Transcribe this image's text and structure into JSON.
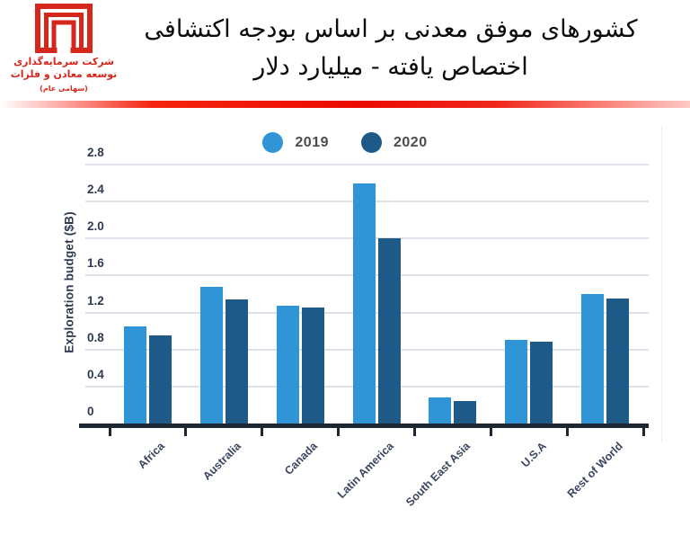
{
  "header": {
    "title_line1": "کشورهای موفق معدنی بر اساس بودجه اکتشافی",
    "title_line2": "اختصاص یافته - میلیارد دلار"
  },
  "logo": {
    "line1": "شرکت سرمایه‌گذاری",
    "line2": "توسعه معادن و فلزات",
    "line3": "(سهامی عام)"
  },
  "colors": {
    "logo_red": "#d6271c",
    "divider_red": "#ec0a00",
    "series_2019": "#2f95d6",
    "series_2020": "#1d5a87",
    "axis_text": "#2e3a52",
    "axis_line": "#1d2633",
    "gridline": "#dde1e8",
    "legend_text": "#4c4c4c"
  },
  "chart_data": {
    "type": "bar",
    "title": "",
    "xlabel": "",
    "ylabel": "Exploration budget ($B)",
    "categories": [
      "Africa",
      "Australia",
      "Canada",
      "Latin America",
      "South East Asia",
      "U.S.A",
      "Rest of World"
    ],
    "series": [
      {
        "name": "2019",
        "color": "#2f95d6",
        "values": [
          1.05,
          1.48,
          1.27,
          2.6,
          0.28,
          0.9,
          1.4
        ]
      },
      {
        "name": "2020",
        "color": "#1d5a87",
        "values": [
          0.95,
          1.34,
          1.25,
          2.0,
          0.24,
          0.88,
          1.35
        ]
      }
    ],
    "ylim": [
      0,
      2.8
    ],
    "yticks": [
      0,
      0.4,
      0.8,
      1.2,
      1.6,
      2.0,
      2.4,
      2.8
    ],
    "ytick_labels": [
      "0",
      "0.4",
      "0.8",
      "1.2",
      "1.6",
      "2.0",
      "2.4",
      "2.8"
    ],
    "grid": "horizontal",
    "legend_position": "top-center"
  }
}
